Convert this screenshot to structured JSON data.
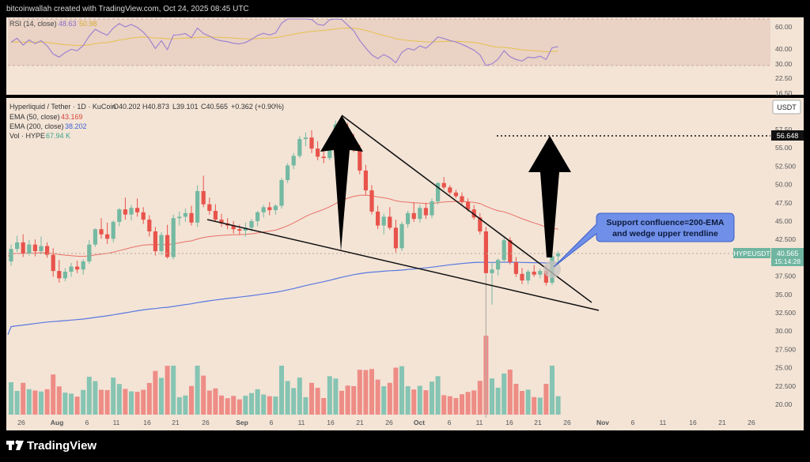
{
  "header": {
    "credit": "bitcoinwallah created with TradingView.com, Oct 24, 2025 08:45 UTC"
  },
  "rsi_pane": {
    "legend_name": "RSI (14, close)",
    "legend_value_1": "48.63",
    "legend_value_2": "50.98",
    "ticks": [
      "60.00",
      "40.00",
      "30.00",
      "22.50",
      "16.50"
    ]
  },
  "main_pane": {
    "symbol_line": "Hyperliquid / Tether · 1D · KuCoin",
    "ohlc": {
      "o": "O40.202",
      "h": "H40.873",
      "l": "L39.101",
      "c": "C40.565",
      "chg": "+0.362 (+0.90%)"
    },
    "ema50": {
      "label": "EMA (50, close)",
      "value": "43.169"
    },
    "ema200": {
      "label": "EMA (200, close)",
      "value": "38.202"
    },
    "vol": {
      "label": "Vol · HYPE",
      "value": "67.94 K"
    },
    "currency": "USDT",
    "price_ticks": [
      "57.50",
      "55.00",
      "52.500",
      "50.00",
      "47.50",
      "45.00",
      "42.500",
      "40.00",
      "37.500",
      "35.00",
      "32.500",
      "30.00",
      "27.500",
      "25.00",
      "22.500",
      "20.00"
    ],
    "target_badge": "56.648",
    "symbol_badge": "HYPEUSDT",
    "price_badge": "40.565",
    "countdown_badge": "15:14:28",
    "annotation": {
      "line1": "Support confluence=200-EMA",
      "line2": "and wedge upper trendline"
    }
  },
  "time_axis": {
    "labels": [
      "26",
      "Aug",
      "6",
      "11",
      "16",
      "21",
      "26",
      "Sep",
      "6",
      "11",
      "16",
      "21",
      "26",
      "Oct",
      "6",
      "11",
      "16",
      "21",
      "26",
      "Nov",
      "6",
      "11",
      "16",
      "21",
      "26"
    ]
  },
  "footer": {
    "brand": "TradingView"
  },
  "colors": {
    "up": "#74b9a2",
    "down": "#e8534b",
    "vol_up": "#86c4b3",
    "vol_down": "#ee8c86",
    "ema50": "#e8534b",
    "ema200": "#5a78e0",
    "rsi": "#9a7ed0",
    "rsi_ma": "#e6c14d",
    "background": "#f3e4d6",
    "annotation_fill": "#6f8fe8"
  },
  "chart_data": {
    "type": "candlestick",
    "price_range": [
      17.5,
      60
    ],
    "candles_ohlc": [
      [
        39.5,
        41.8,
        38.9,
        41.2
      ],
      [
        41.2,
        43.0,
        40.8,
        42.1
      ],
      [
        42.1,
        43.2,
        40.1,
        40.6
      ],
      [
        40.6,
        42.4,
        40.3,
        41.8
      ],
      [
        41.8,
        42.5,
        40.2,
        40.9
      ],
      [
        40.9,
        42.9,
        40.5,
        41.6
      ],
      [
        41.6,
        42.1,
        40.0,
        40.4
      ],
      [
        40.4,
        41.3,
        37.4,
        38.2
      ],
      [
        38.2,
        39.7,
        36.6,
        37.2
      ],
      [
        37.2,
        38.6,
        36.8,
        38.1
      ],
      [
        38.1,
        39.3,
        37.4,
        38.8
      ],
      [
        38.8,
        39.6,
        37.9,
        38.4
      ],
      [
        38.4,
        39.8,
        37.7,
        39.5
      ],
      [
        39.5,
        42.4,
        39.2,
        41.8
      ],
      [
        41.8,
        44.0,
        41.5,
        43.9
      ],
      [
        43.9,
        45.4,
        42.6,
        43.2
      ],
      [
        43.2,
        44.8,
        41.9,
        42.6
      ],
      [
        42.6,
        45.1,
        42.1,
        44.9
      ],
      [
        44.9,
        46.8,
        44.3,
        46.6
      ],
      [
        46.6,
        48.2,
        45.2,
        45.9
      ],
      [
        45.9,
        47.2,
        45.1,
        46.8
      ],
      [
        46.8,
        48.1,
        45.6,
        46.2
      ],
      [
        46.2,
        46.9,
        44.6,
        45.2
      ],
      [
        45.2,
        45.8,
        42.9,
        43.6
      ],
      [
        43.6,
        44.2,
        40.3,
        40.9
      ],
      [
        40.9,
        43.5,
        40.4,
        43.1
      ],
      [
        43.1,
        44.5,
        39.9,
        40.1
      ],
      [
        40.1,
        45.9,
        39.8,
        45.4
      ],
      [
        45.4,
        46.3,
        44.4,
        45.6
      ],
      [
        45.6,
        46.7,
        44.9,
        46.1
      ],
      [
        46.1,
        47.1,
        44.4,
        44.8
      ],
      [
        44.8,
        49.9,
        44.2,
        49.1
      ],
      [
        49.1,
        51.2,
        46.9,
        47.3
      ],
      [
        47.3,
        48.2,
        45.9,
        46.4
      ],
      [
        46.4,
        47.3,
        45.0,
        45.2
      ],
      [
        45.2,
        46.0,
        44.2,
        44.7
      ],
      [
        44.7,
        45.4,
        43.9,
        44.4
      ],
      [
        44.4,
        45.0,
        43.3,
        43.9
      ],
      [
        43.9,
        44.5,
        43.1,
        43.7
      ],
      [
        43.7,
        44.8,
        42.9,
        44.1
      ],
      [
        44.1,
        45.3,
        43.6,
        45.0
      ],
      [
        45.0,
        46.4,
        44.3,
        46.2
      ],
      [
        46.2,
        47.2,
        45.5,
        46.9
      ],
      [
        46.9,
        47.6,
        45.8,
        46.5
      ],
      [
        46.5,
        47.3,
        45.9,
        47.1
      ],
      [
        47.1,
        50.9,
        46.7,
        50.6
      ],
      [
        50.6,
        52.9,
        50.2,
        52.6
      ],
      [
        52.6,
        54.3,
        52.1,
        53.9
      ],
      [
        53.9,
        56.6,
        53.6,
        56.2
      ],
      [
        56.2,
        57.1,
        55.2,
        56.4
      ],
      [
        56.4,
        57.4,
        54.3,
        54.9
      ],
      [
        54.9,
        55.9,
        53.3,
        53.8
      ],
      [
        53.8,
        54.6,
        52.9,
        53.6
      ],
      [
        53.6,
        56.3,
        53.3,
        56.1
      ],
      [
        56.1,
        58.7,
        55.6,
        58.2
      ],
      [
        58.2,
        59.3,
        56.9,
        57.4
      ],
      [
        57.4,
        58.4,
        55.6,
        56.1
      ],
      [
        56.1,
        56.9,
        54.4,
        54.7
      ],
      [
        54.7,
        55.4,
        51.4,
        51.9
      ],
      [
        51.9,
        52.7,
        48.6,
        49.2
      ],
      [
        49.2,
        49.9,
        45.9,
        46.3
      ],
      [
        46.3,
        47.1,
        43.9,
        44.4
      ],
      [
        44.4,
        46.0,
        43.2,
        45.6
      ],
      [
        45.6,
        46.9,
        43.8,
        44.1
      ],
      [
        44.1,
        45.2,
        40.7,
        41.3
      ],
      [
        41.3,
        44.9,
        40.9,
        44.6
      ],
      [
        44.6,
        46.4,
        44.1,
        46.1
      ],
      [
        46.1,
        47.6,
        44.9,
        45.3
      ],
      [
        45.3,
        47.2,
        44.8,
        46.8
      ],
      [
        46.8,
        47.5,
        45.3,
        45.8
      ],
      [
        45.8,
        48.1,
        45.4,
        47.7
      ],
      [
        47.7,
        50.3,
        47.3,
        50.2
      ],
      [
        50.2,
        51.0,
        49.3,
        49.6
      ],
      [
        49.6,
        49.9,
        48.6,
        48.9
      ],
      [
        48.9,
        49.3,
        48.1,
        48.4
      ],
      [
        48.4,
        48.9,
        47.3,
        47.6
      ],
      [
        47.6,
        48.1,
        46.3,
        46.6
      ],
      [
        46.6,
        47.2,
        45.2,
        45.5
      ],
      [
        45.5,
        46.1,
        43.2,
        43.6
      ],
      [
        43.6,
        44.2,
        39.6,
        37.9
      ],
      [
        37.9,
        39.4,
        33.6,
        38.4
      ],
      [
        38.4,
        39.9,
        37.6,
        39.7
      ],
      [
        39.7,
        42.7,
        39.4,
        42.4
      ],
      [
        42.4,
        42.8,
        39.1,
        39.4
      ],
      [
        39.4,
        40.1,
        37.4,
        37.8
      ],
      [
        37.8,
        38.6,
        36.4,
        36.9
      ],
      [
        36.9,
        38.4,
        36.4,
        38.1
      ],
      [
        38.1,
        39.0,
        37.4,
        37.7
      ],
      [
        37.7,
        38.5,
        37.2,
        38.2
      ],
      [
        38.2,
        38.9,
        36.2,
        36.6
      ],
      [
        36.6,
        40.6,
        36.3,
        40.2
      ],
      [
        40.2,
        40.9,
        39.1,
        40.6
      ]
    ],
    "trendline_upper": [
      [
        55.8,
        61.8
      ],
      [
        37.6,
        33.2
      ]
    ],
    "trendline_lower": [
      [
        39.5,
        33.0
      ]
    ],
    "target_price": 56.648
  }
}
